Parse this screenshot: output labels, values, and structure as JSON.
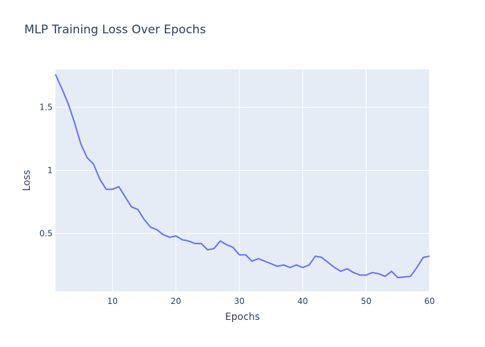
{
  "chart_data": {
    "type": "line",
    "title": "MLP Training Loss Over Epochs",
    "xlabel": "Epochs",
    "ylabel": "Loss",
    "xlim": [
      1,
      60
    ],
    "ylim": [
      0.04,
      1.8
    ],
    "x_ticks": [
      10,
      20,
      30,
      40,
      50,
      60
    ],
    "y_ticks": [
      0.5,
      1,
      1.5
    ],
    "grid": true,
    "legend": "none",
    "colors": {
      "line": "#636efa",
      "plot_background": "#e5ecf6",
      "grid": "#ffffff",
      "text": "#2a3f5f"
    },
    "series": [
      {
        "x": [
          1,
          2,
          3,
          4,
          5,
          6,
          7,
          8,
          9,
          10,
          11,
          12,
          13,
          14,
          15,
          16,
          17,
          18,
          19,
          20,
          21,
          22,
          23,
          24,
          25,
          26,
          27,
          28,
          29,
          30,
          31,
          32,
          33,
          34,
          35,
          36,
          37,
          38,
          39,
          40,
          41,
          42,
          43,
          44,
          45,
          46,
          47,
          48,
          49,
          50,
          51,
          52,
          53,
          54,
          55,
          56,
          57,
          58,
          59,
          60
        ],
        "values": [
          1.76,
          1.65,
          1.53,
          1.38,
          1.21,
          1.1,
          1.05,
          0.93,
          0.85,
          0.85,
          0.87,
          0.79,
          0.71,
          0.69,
          0.61,
          0.55,
          0.53,
          0.49,
          0.47,
          0.48,
          0.45,
          0.44,
          0.42,
          0.42,
          0.37,
          0.38,
          0.44,
          0.41,
          0.39,
          0.33,
          0.33,
          0.28,
          0.3,
          0.28,
          0.26,
          0.24,
          0.25,
          0.23,
          0.25,
          0.23,
          0.25,
          0.32,
          0.31,
          0.27,
          0.23,
          0.2,
          0.22,
          0.19,
          0.17,
          0.17,
          0.19,
          0.18,
          0.16,
          0.2,
          0.15,
          0.155,
          0.16,
          0.23,
          0.31,
          0.32
        ]
      }
    ]
  }
}
